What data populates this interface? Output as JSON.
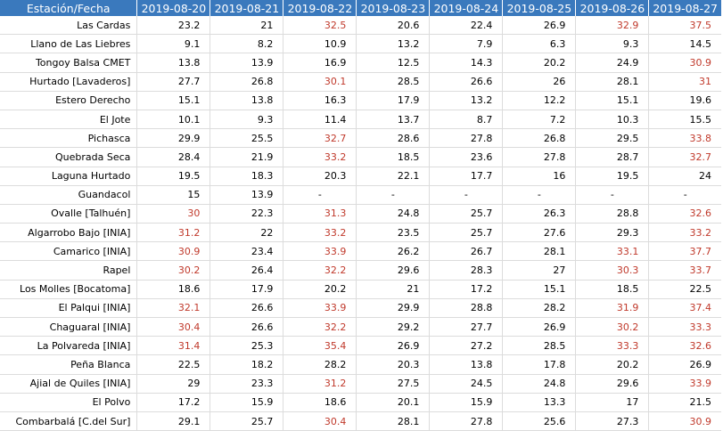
{
  "table": {
    "header": {
      "station_label": "Estación/Fecha",
      "dates": [
        "2019-08-20",
        "2019-08-21",
        "2019-08-22",
        "2019-08-23",
        "2019-08-24",
        "2019-08-25",
        "2019-08-26",
        "2019-08-27"
      ]
    },
    "highlight_color": "#c0392b",
    "header_color": "#3a79bd",
    "rows": [
      {
        "station": "Las Cardas",
        "values": [
          "23.2",
          "21",
          "32.5",
          "20.6",
          "22.4",
          "26.9",
          "32.9",
          "37.5"
        ],
        "hot": [
          false,
          false,
          true,
          false,
          false,
          false,
          true,
          true
        ]
      },
      {
        "station": "Llano de Las Liebres",
        "values": [
          "9.1",
          "8.2",
          "10.9",
          "13.2",
          "7.9",
          "6.3",
          "9.3",
          "14.5"
        ],
        "hot": [
          false,
          false,
          false,
          false,
          false,
          false,
          false,
          false
        ]
      },
      {
        "station": "Tongoy Balsa CMET",
        "values": [
          "13.8",
          "13.9",
          "16.9",
          "12.5",
          "14.3",
          "20.2",
          "24.9",
          "30.9"
        ],
        "hot": [
          false,
          false,
          false,
          false,
          false,
          false,
          false,
          true
        ]
      },
      {
        "station": "Hurtado [Lavaderos]",
        "values": [
          "27.7",
          "26.8",
          "30.1",
          "28.5",
          "26.6",
          "26",
          "28.1",
          "31"
        ],
        "hot": [
          false,
          false,
          true,
          false,
          false,
          false,
          false,
          true
        ]
      },
      {
        "station": "Estero Derecho",
        "values": [
          "15.1",
          "13.8",
          "16.3",
          "17.9",
          "13.2",
          "12.2",
          "15.1",
          "19.6"
        ],
        "hot": [
          false,
          false,
          false,
          false,
          false,
          false,
          false,
          false
        ]
      },
      {
        "station": "El Jote",
        "values": [
          "10.1",
          "9.3",
          "11.4",
          "13.7",
          "8.7",
          "7.2",
          "10.3",
          "15.5"
        ],
        "hot": [
          false,
          false,
          false,
          false,
          false,
          false,
          false,
          false
        ]
      },
      {
        "station": "Pichasca",
        "values": [
          "29.9",
          "25.5",
          "32.7",
          "28.6",
          "27.8",
          "26.8",
          "29.5",
          "33.8"
        ],
        "hot": [
          false,
          false,
          true,
          false,
          false,
          false,
          false,
          true
        ]
      },
      {
        "station": "Quebrada Seca",
        "values": [
          "28.4",
          "21.9",
          "33.2",
          "18.5",
          "23.6",
          "27.8",
          "28.7",
          "32.7"
        ],
        "hot": [
          false,
          false,
          true,
          false,
          false,
          false,
          false,
          true
        ]
      },
      {
        "station": "Laguna Hurtado",
        "values": [
          "19.5",
          "18.3",
          "20.3",
          "22.1",
          "17.7",
          "16",
          "19.5",
          "24"
        ],
        "hot": [
          false,
          false,
          false,
          false,
          false,
          false,
          false,
          false
        ]
      },
      {
        "station": "Guandacol",
        "values": [
          "15",
          "13.9",
          "-",
          "-",
          "-",
          "-",
          "-",
          "-"
        ],
        "hot": [
          false,
          false,
          false,
          false,
          false,
          false,
          false,
          false
        ]
      },
      {
        "station": "Ovalle [Talhuén]",
        "values": [
          "30",
          "22.3",
          "31.3",
          "24.8",
          "25.7",
          "26.3",
          "28.8",
          "32.6"
        ],
        "hot": [
          true,
          false,
          true,
          false,
          false,
          false,
          false,
          true
        ]
      },
      {
        "station": "Algarrobo Bajo [INIA]",
        "values": [
          "31.2",
          "22",
          "33.2",
          "23.5",
          "25.7",
          "27.6",
          "29.3",
          "33.2"
        ],
        "hot": [
          true,
          false,
          true,
          false,
          false,
          false,
          false,
          true
        ]
      },
      {
        "station": "Camarico [INIA]",
        "values": [
          "30.9",
          "23.4",
          "33.9",
          "26.2",
          "26.7",
          "28.1",
          "33.1",
          "37.7"
        ],
        "hot": [
          true,
          false,
          true,
          false,
          false,
          false,
          true,
          true
        ]
      },
      {
        "station": "Rapel",
        "values": [
          "30.2",
          "26.4",
          "32.2",
          "29.6",
          "28.3",
          "27",
          "30.3",
          "33.7"
        ],
        "hot": [
          true,
          false,
          true,
          false,
          false,
          false,
          true,
          true
        ]
      },
      {
        "station": "Los Molles [Bocatoma]",
        "values": [
          "18.6",
          "17.9",
          "20.2",
          "21",
          "17.2",
          "15.1",
          "18.5",
          "22.5"
        ],
        "hot": [
          false,
          false,
          false,
          false,
          false,
          false,
          false,
          false
        ]
      },
      {
        "station": "El Palqui [INIA]",
        "values": [
          "32.1",
          "26.6",
          "33.9",
          "29.9",
          "28.8",
          "28.2",
          "31.9",
          "37.4"
        ],
        "hot": [
          true,
          false,
          true,
          false,
          false,
          false,
          true,
          true
        ]
      },
      {
        "station": "Chaguaral [INIA]",
        "values": [
          "30.4",
          "26.6",
          "32.2",
          "29.2",
          "27.7",
          "26.9",
          "30.2",
          "33.3"
        ],
        "hot": [
          true,
          false,
          true,
          false,
          false,
          false,
          true,
          true
        ]
      },
      {
        "station": "La Polvareda [INIA]",
        "values": [
          "31.4",
          "25.3",
          "35.4",
          "26.9",
          "27.2",
          "28.5",
          "33.3",
          "32.6"
        ],
        "hot": [
          true,
          false,
          true,
          false,
          false,
          false,
          true,
          true
        ]
      },
      {
        "station": "Peña Blanca",
        "values": [
          "22.5",
          "18.2",
          "28.2",
          "20.3",
          "13.8",
          "17.8",
          "20.2",
          "26.9"
        ],
        "hot": [
          false,
          false,
          false,
          false,
          false,
          false,
          false,
          false
        ]
      },
      {
        "station": "Ajial de Quiles [INIA]",
        "values": [
          "29",
          "23.3",
          "31.2",
          "27.5",
          "24.5",
          "24.8",
          "29.6",
          "33.9"
        ],
        "hot": [
          false,
          false,
          true,
          false,
          false,
          false,
          false,
          true
        ]
      },
      {
        "station": "El Polvo",
        "values": [
          "17.2",
          "15.9",
          "18.6",
          "20.1",
          "15.9",
          "13.3",
          "17",
          "21.5"
        ],
        "hot": [
          false,
          false,
          false,
          false,
          false,
          false,
          false,
          false
        ]
      },
      {
        "station": "Combarbalá [C.del Sur]",
        "values": [
          "29.1",
          "25.7",
          "30.4",
          "28.1",
          "27.8",
          "25.6",
          "27.3",
          "30.9"
        ],
        "hot": [
          false,
          false,
          true,
          false,
          false,
          false,
          false,
          true
        ]
      }
    ]
  }
}
